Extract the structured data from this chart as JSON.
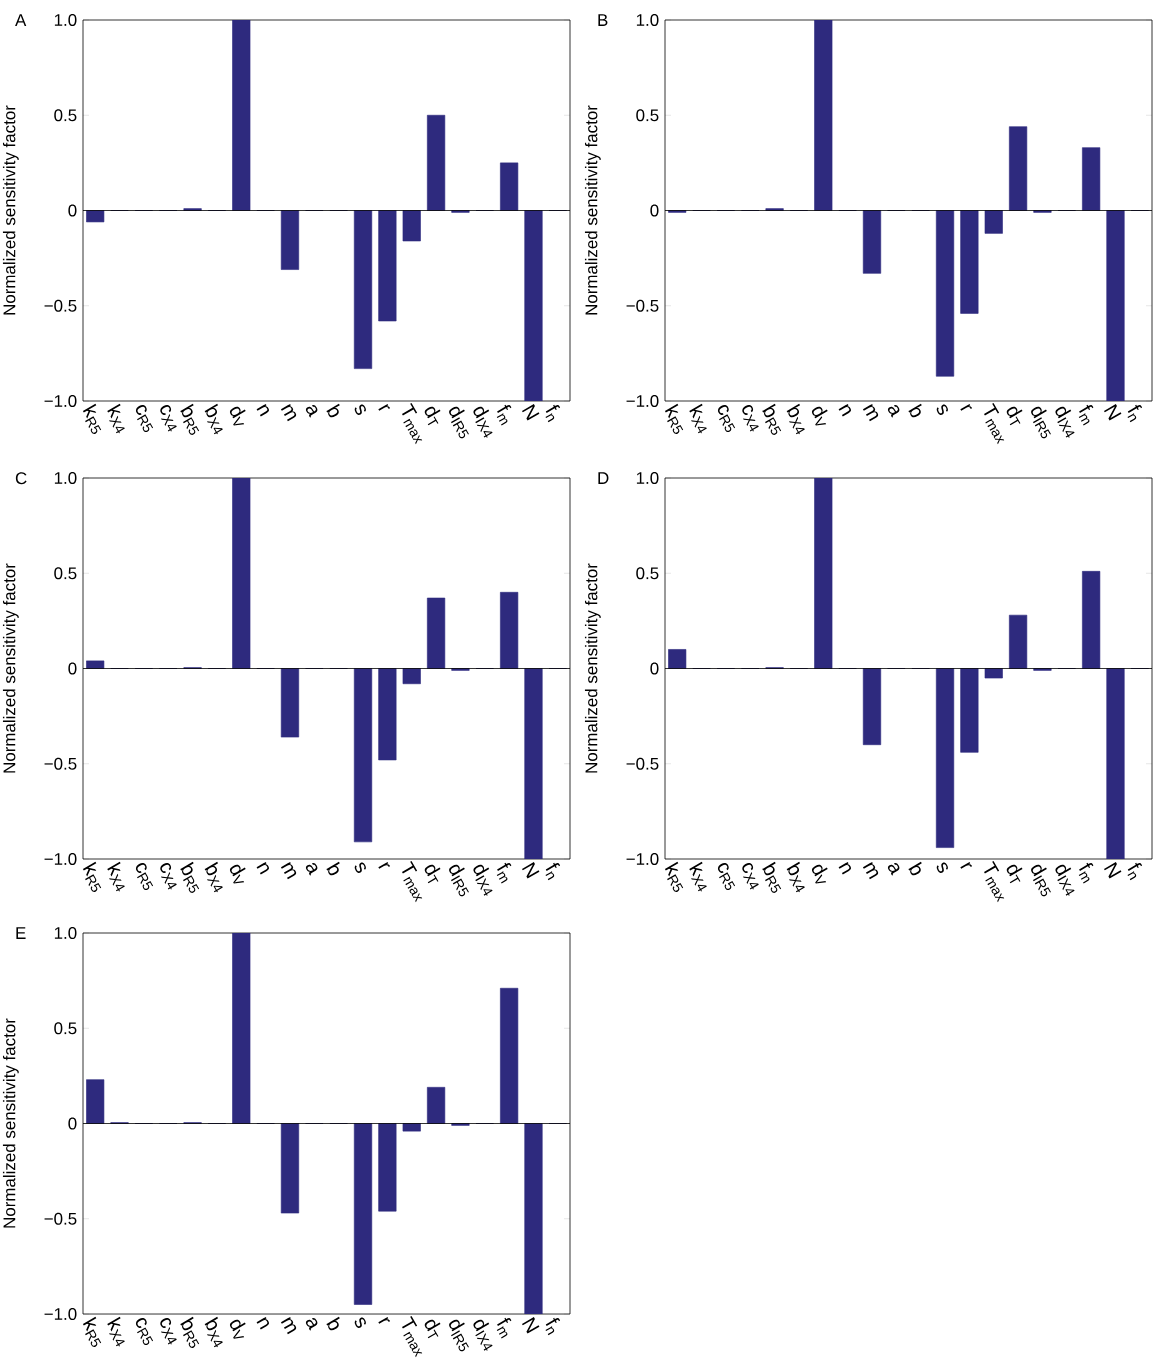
{
  "chart_data": [
    {
      "type": "bar",
      "title": "A",
      "ylabel": "Normalized sensitivity factor",
      "color": "#2e2a7e",
      "categories": [
        "k$_{R5}$",
        "k$_{X4}$",
        "c$_{R5}$",
        "c$_{X4}$",
        "b$_{R5}$",
        "b$_{X4}$",
        "d$_{V}$",
        "n",
        "m",
        "a",
        "b",
        "s",
        "r",
        "T$_{max}$",
        "d$_{T}$",
        "d$_{IR5}$",
        "d$_{IX4}$",
        "f$_{m}$",
        "N",
        "f$_{n}$"
      ],
      "values": [
        -0.06,
        0,
        0,
        0,
        0.01,
        0,
        1.0,
        0,
        -0.31,
        0,
        0,
        -0.83,
        -0.58,
        -0.16,
        0.5,
        -0.01,
        0,
        0.25,
        -1.0,
        0
      ],
      "ylim": [
        -1,
        1
      ],
      "yticks": [
        {
          "value": -1,
          "label": "−1.0"
        },
        {
          "value": -0.5,
          "label": "−0.5"
        },
        0,
        0.5,
        {
          "value": 1,
          "label": "1.0"
        }
      ]
    },
    {
      "type": "bar",
      "title": "B",
      "ylabel": "Normalized sensitivity factor",
      "color": "#2e2a7e",
      "categories": [
        "k$_{R5}$",
        "k$_{X4}$",
        "c$_{R5}$",
        "c$_{X4}$",
        "b$_{R5}$",
        "b$_{X4}$",
        "d$_{V}$",
        "n",
        "m",
        "a",
        "b",
        "s",
        "r",
        "T$_{max}$",
        "d$_{T}$",
        "d$_{IR5}$",
        "d$_{IX4}$",
        "f$_{m}$",
        "N",
        "f$_{n}$"
      ],
      "values": [
        -0.01,
        0,
        0,
        0,
        0.01,
        0,
        1.0,
        0,
        -0.33,
        0,
        0,
        -0.87,
        -0.54,
        -0.12,
        0.44,
        -0.01,
        0,
        0.33,
        -1.0,
        0
      ],
      "ylim": [
        -1,
        1
      ],
      "yticks": [
        {
          "value": -1,
          "label": "−1.0"
        },
        {
          "value": -0.5,
          "label": "−0.5"
        },
        0,
        0.5,
        {
          "value": 1,
          "label": "1.0"
        }
      ]
    },
    {
      "type": "bar",
      "title": "C",
      "ylabel": "Normalized sensitivity factor",
      "color": "#2e2a7e",
      "categories": [
        "k$_{R5}$",
        "k$_{X4}$",
        "c$_{R5}$",
        "c$_{X4}$",
        "b$_{R5}$",
        "b$_{X4}$",
        "d$_{V}$",
        "n",
        "m",
        "a",
        "b",
        "s",
        "r",
        "T$_{max}$",
        "d$_{T}$",
        "d$_{IR5}$",
        "d$_{IX4}$",
        "f$_{m}$",
        "N",
        "f$_{n}$"
      ],
      "values": [
        0.04,
        0,
        0,
        0,
        0.005,
        0,
        1.0,
        0,
        -0.36,
        0,
        0,
        -0.91,
        -0.48,
        -0.08,
        0.37,
        -0.01,
        0,
        0.4,
        -1.0,
        0
      ],
      "ylim": [
        -1,
        1
      ],
      "yticks": [
        {
          "value": -1,
          "label": "−1.0"
        },
        {
          "value": -0.5,
          "label": "−0.5"
        },
        0,
        0.5,
        {
          "value": 1,
          "label": "1.0"
        }
      ]
    },
    {
      "type": "bar",
      "title": "D",
      "ylabel": "Normalized sensitivity factor",
      "color": "#2e2a7e",
      "categories": [
        "k$_{R5}$",
        "k$_{X4}$",
        "c$_{R5}$",
        "c$_{X4}$",
        "b$_{R5}$",
        "b$_{X4}$",
        "d$_{V}$",
        "n",
        "m",
        "a",
        "b",
        "s",
        "r",
        "T$_{max}$",
        "d$_{T}$",
        "d$_{IR5}$",
        "d$_{IX4}$",
        "f$_{m}$",
        "N",
        "f$_{n}$"
      ],
      "values": [
        0.1,
        0,
        0,
        0,
        0.005,
        0,
        1.0,
        0,
        -0.4,
        0,
        0,
        -0.94,
        -0.44,
        -0.05,
        0.28,
        -0.01,
        0,
        0.51,
        -1.0,
        0
      ],
      "ylim": [
        -1,
        1
      ],
      "yticks": [
        {
          "value": -1,
          "label": "−1.0"
        },
        {
          "value": -0.5,
          "label": "−0.5"
        },
        0,
        0.5,
        {
          "value": 1,
          "label": "1.0"
        }
      ]
    },
    {
      "type": "bar",
      "title": "E",
      "ylabel": "Normalized sensitivity factor",
      "color": "#2e2a7e",
      "categories": [
        "k$_{R5}$",
        "k$_{X4}$",
        "c$_{R5}$",
        "c$_{X4}$",
        "b$_{R5}$",
        "b$_{X4}$",
        "d$_{V}$",
        "n",
        "m",
        "a",
        "b",
        "s",
        "r",
        "T$_{max}$",
        "d$_{T}$",
        "d$_{IR5}$",
        "d$_{IX4}$",
        "f$_{m}$",
        "N",
        "f$_{n}$"
      ],
      "values": [
        0.23,
        0.005,
        0,
        0,
        0.005,
        0,
        1.0,
        0,
        -0.47,
        0,
        0,
        -0.95,
        -0.46,
        -0.04,
        0.19,
        -0.01,
        0,
        0.71,
        -1.0,
        0
      ],
      "ylim": [
        -1,
        1
      ],
      "yticks": [
        {
          "value": -1,
          "label": "−1.0"
        },
        {
          "value": -0.5,
          "label": "−0.5"
        },
        0,
        0.5,
        {
          "value": 1,
          "label": "1.0"
        }
      ]
    }
  ]
}
